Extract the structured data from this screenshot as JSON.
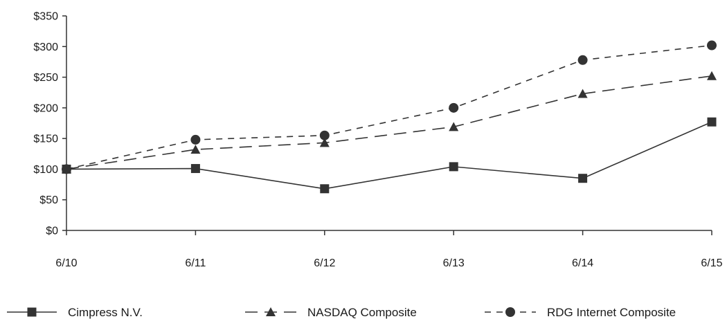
{
  "chart_data": {
    "type": "line",
    "categories": [
      "6/10",
      "6/11",
      "6/12",
      "6/13",
      "6/14",
      "6/15"
    ],
    "ylim": [
      0,
      350
    ],
    "y_ticks": [
      0,
      50,
      100,
      150,
      200,
      250,
      300,
      350
    ],
    "y_tick_labels": [
      "$0",
      "$50",
      "$100",
      "$150",
      "$200",
      "$250",
      "$300",
      "$350"
    ],
    "grid": false,
    "legend_position": "bottom",
    "series": [
      {
        "name": "Cimpress N.V.",
        "values": [
          100,
          101,
          68,
          104,
          85,
          177
        ],
        "marker": "square",
        "line_style": "solid",
        "color": "#333333"
      },
      {
        "name": "NASDAQ Composite",
        "values": [
          100,
          132,
          143,
          169,
          223,
          252
        ],
        "marker": "triangle",
        "line_style": "long-dash",
        "color": "#333333"
      },
      {
        "name": "RDG Internet Composite",
        "values": [
          100,
          148,
          155,
          200,
          278,
          302
        ],
        "marker": "circle",
        "line_style": "short-dash",
        "color": "#333333"
      }
    ]
  }
}
